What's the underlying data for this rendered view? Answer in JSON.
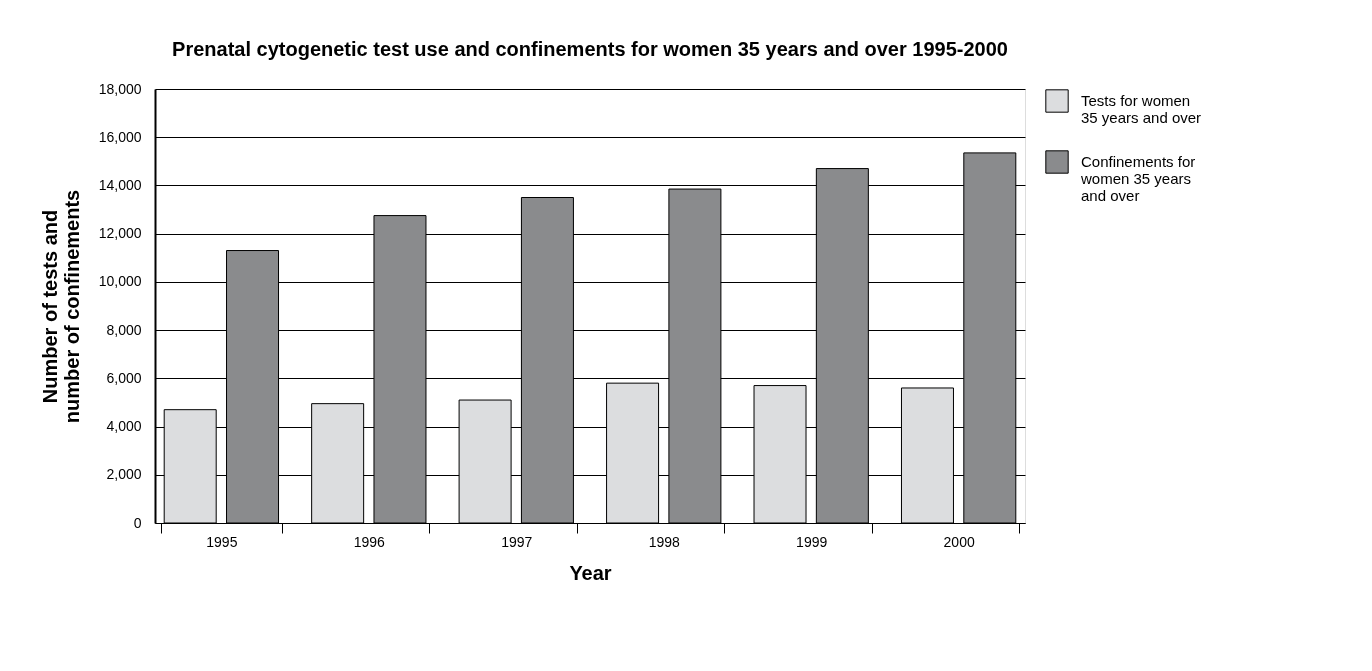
{
  "chart_data": {
    "type": "bar",
    "title": "Prenatal cytogenetic test use and confinements for women 35 years and over 1995-2000",
    "xlabel": "Year",
    "ylabel": "Number of tests and\nnumber of confinements",
    "categories": [
      "1995",
      "1996",
      "1997",
      "1998",
      "1999",
      "2000"
    ],
    "series": [
      {
        "name": "Tests for women\n35 years and over",
        "color": "#dcdddf",
        "values": [
          4700,
          4950,
          5100,
          5800,
          5700,
          5600
        ]
      },
      {
        "name": "Confinements for\nwomen 35 years\nand over",
        "color": "#8a8b8d",
        "values": [
          11300,
          12750,
          13500,
          13850,
          14700,
          15350
        ]
      }
    ],
    "ylim": [
      0,
      18000
    ],
    "yticks": [
      {
        "value": 0,
        "label": "0"
      },
      {
        "value": 2000,
        "label": "2,000"
      },
      {
        "value": 4000,
        "label": "4,000"
      },
      {
        "value": 6000,
        "label": "6,000"
      },
      {
        "value": 8000,
        "label": "8,000"
      },
      {
        "value": 10000,
        "label": "10,000"
      },
      {
        "value": 12000,
        "label": "12,000"
      },
      {
        "value": 14000,
        "label": "14,000"
      },
      {
        "value": 16000,
        "label": "16,000"
      },
      {
        "value": 18000,
        "label": "18,000"
      }
    ],
    "grid": "y",
    "legend": "top right"
  }
}
